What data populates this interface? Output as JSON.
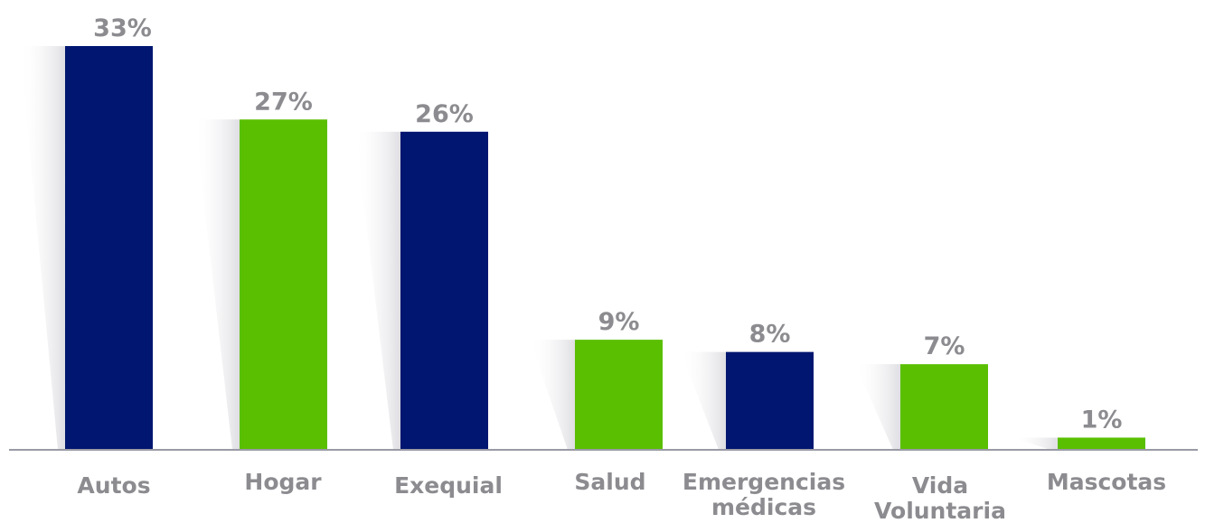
{
  "chart_data": {
    "type": "bar",
    "categories": [
      [
        "Autos"
      ],
      [
        "Hogar"
      ],
      [
        "Exequial"
      ],
      [
        "Salud"
      ],
      [
        "Emergencias",
        "médicas"
      ],
      [
        "Vida",
        "Voluntaria"
      ],
      [
        "Mascotas"
      ]
    ],
    "values": [
      33,
      27,
      26,
      9,
      8,
      7,
      1
    ],
    "value_labels": [
      "33%",
      "27%",
      "26%",
      "9%",
      "8%",
      "7%",
      "1%"
    ],
    "unit": "%",
    "ylim": [
      0,
      33
    ],
    "grid": false,
    "legend": "none",
    "colors": [
      "#001670",
      "#5abf00",
      "#001670",
      "#5abf00",
      "#001670",
      "#5abf00",
      "#5abf00"
    ],
    "axis_color": "#9a9aa6",
    "label_color": "#8c8c90"
  }
}
